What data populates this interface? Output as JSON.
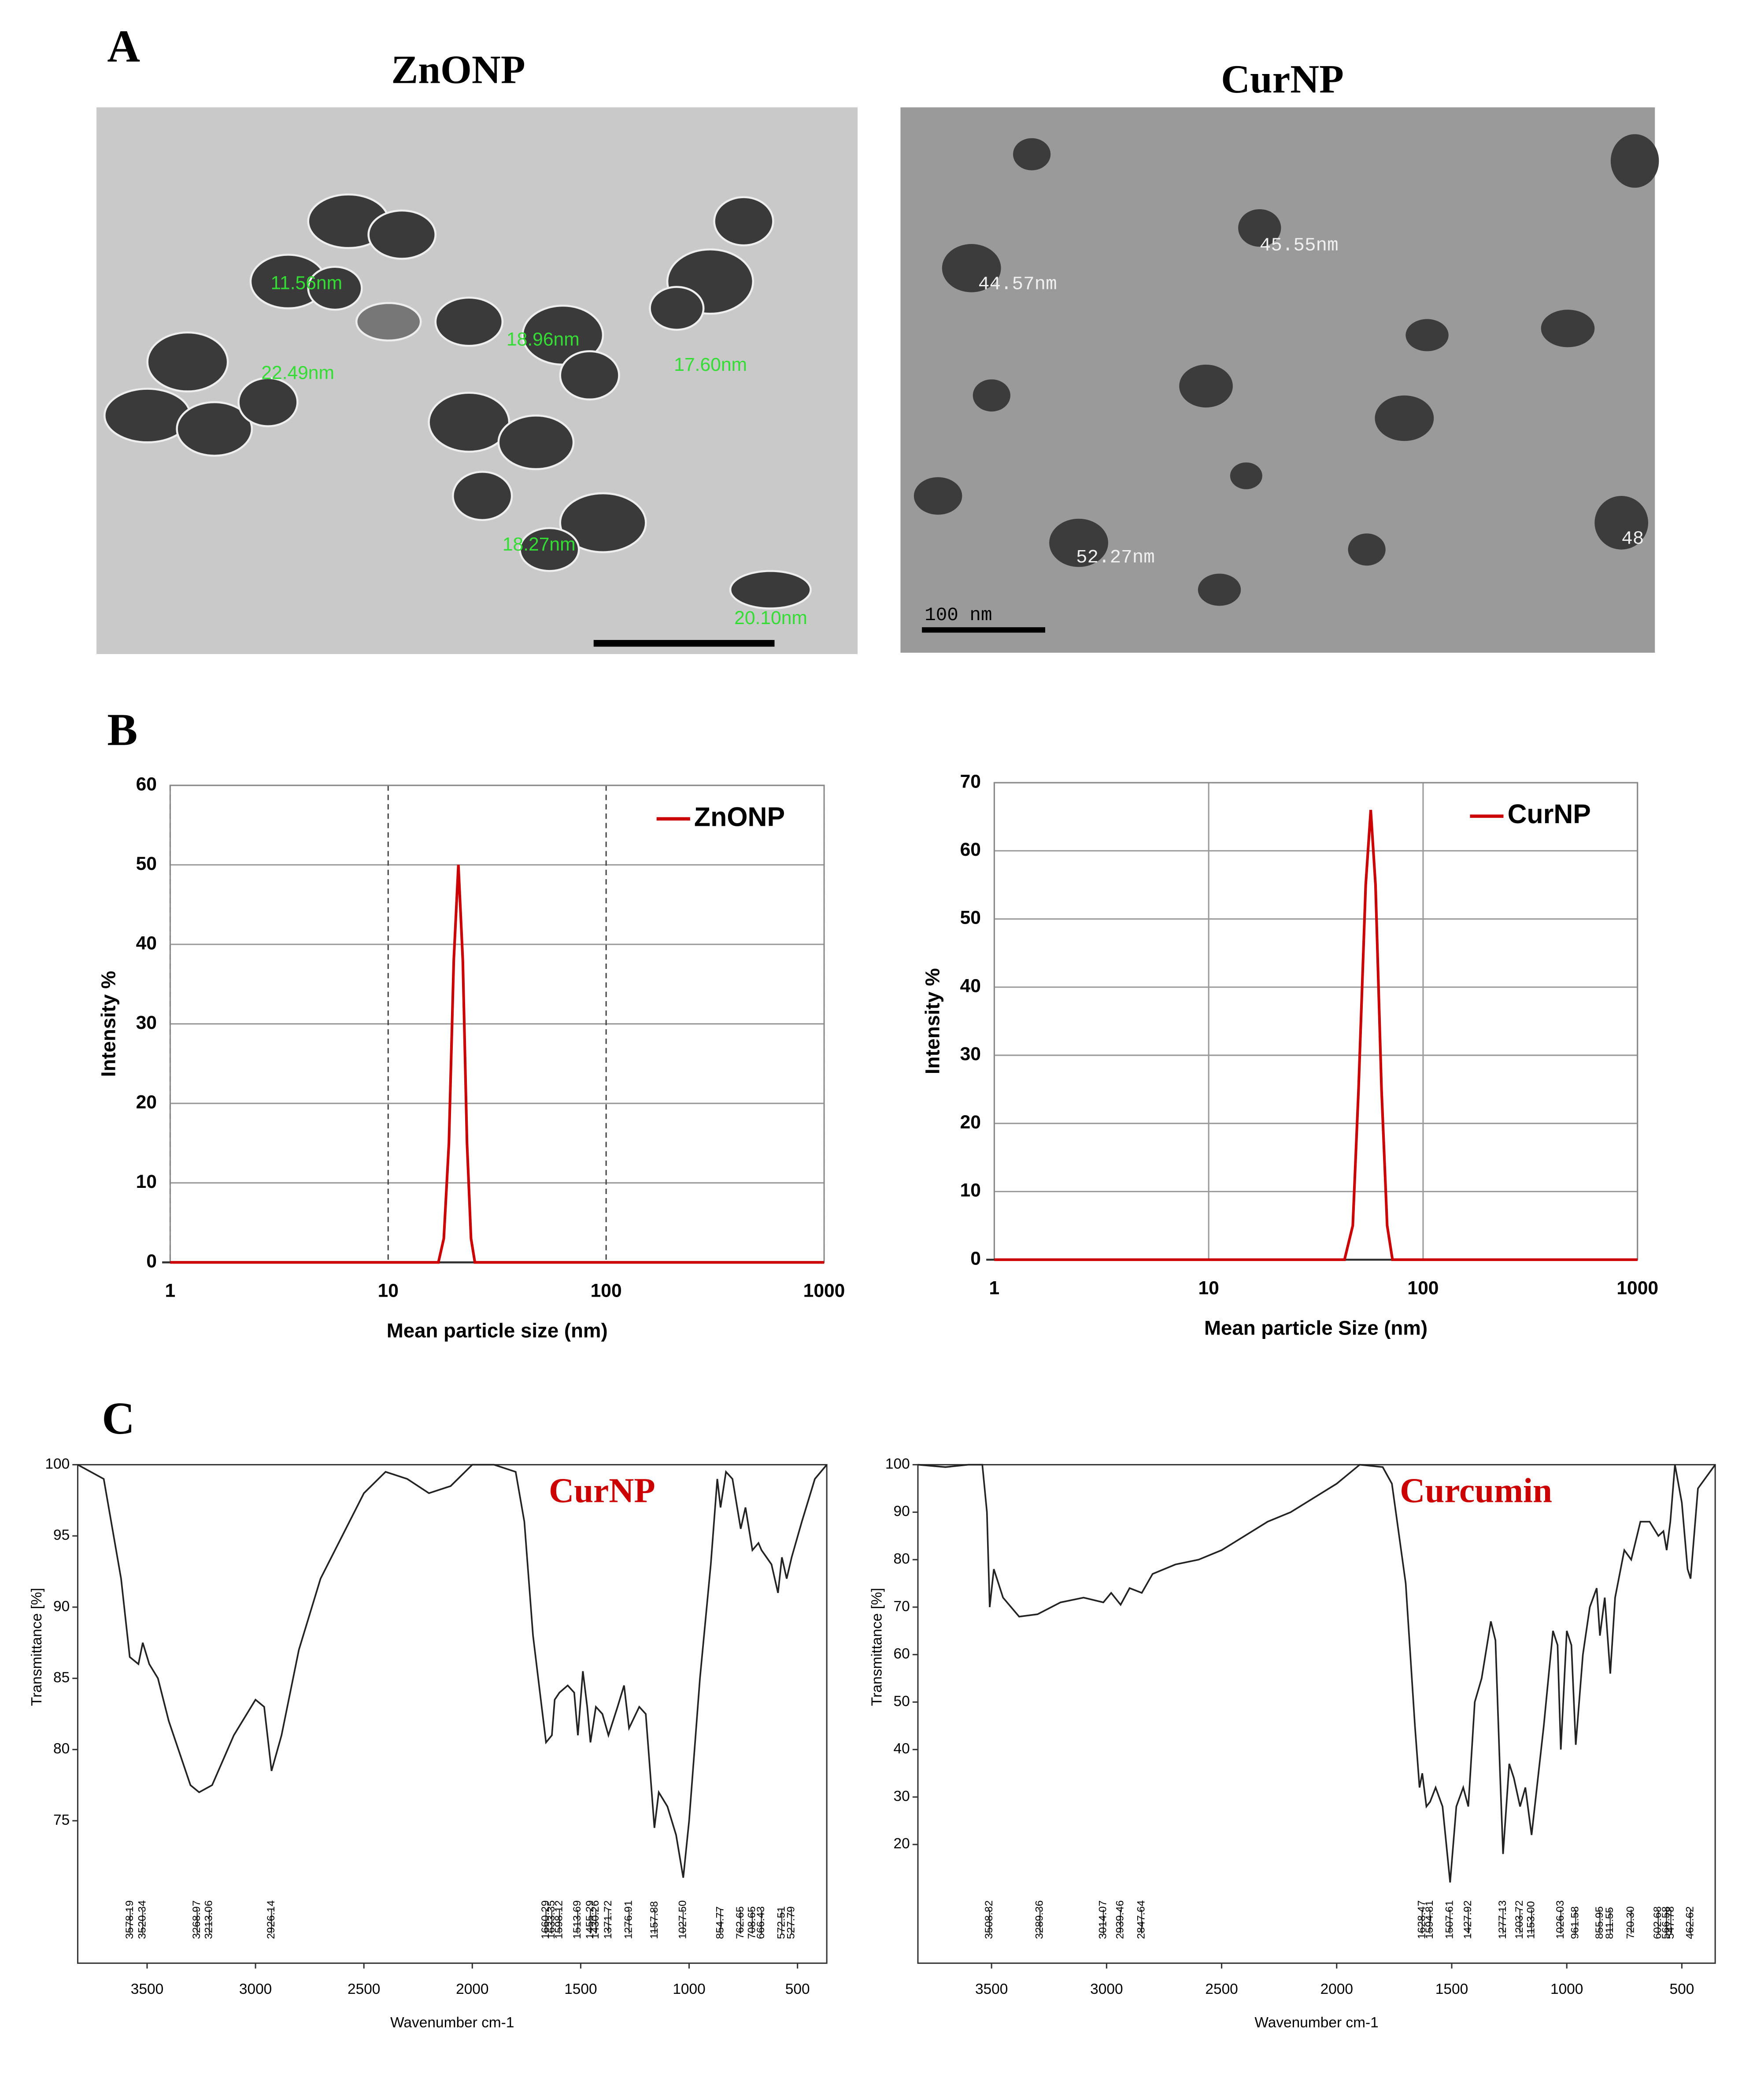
{
  "panel_labels": [
    "A",
    "B",
    "C"
  ],
  "images": [
    {
      "title": "ZnONP",
      "annotations": [
        "11.56nm",
        "18.96nm",
        "22.49nm",
        "17.60nm",
        "18.27nm",
        "20.10nm"
      ]
    },
    {
      "title": "CurNP",
      "annotations": [
        "45.55nm",
        "44.57nm",
        "52.27nm",
        "48"
      ],
      "scale_bar": "100 nm"
    }
  ],
  "chart_data": [
    {
      "type": "line",
      "xscale": "log",
      "grid": true,
      "xgrid_style": "dashed",
      "legend": "top-right",
      "x_label": "Mean particle size (nm)",
      "y_label": "Intensity %",
      "xlim": [
        1,
        1000
      ],
      "xticks": [
        1,
        10,
        100,
        1000
      ],
      "ylim": [
        0,
        60
      ],
      "yticks": [
        0,
        10,
        20,
        30,
        40,
        50,
        60
      ],
      "x": [
        1,
        17,
        18,
        19,
        20,
        21,
        22,
        23,
        24,
        25,
        1000
      ],
      "series": [
        {
          "name": "ZnONP",
          "color": "#cc0000",
          "values": [
            0,
            0,
            3,
            15,
            38,
            50,
            38,
            15,
            3,
            0,
            0
          ]
        }
      ]
    },
    {
      "type": "line",
      "xscale": "log",
      "grid": true,
      "xgrid_style": "solid",
      "legend": "top-right",
      "x_label": "Mean particle Size (nm)",
      "y_label": "Intensity %",
      "xlim": [
        1,
        1000
      ],
      "xticks": [
        1,
        10,
        100,
        1000
      ],
      "ylim": [
        0,
        70
      ],
      "yticks": [
        0,
        10,
        20,
        30,
        40,
        50,
        60,
        70
      ],
      "x": [
        1,
        43,
        47,
        50,
        54,
        57,
        60,
        64,
        68,
        72,
        1000
      ],
      "series": [
        {
          "name": "CurNP",
          "color": "#cc0000",
          "values": [
            0,
            0,
            5,
            25,
            55,
            66,
            55,
            25,
            5,
            0,
            0
          ]
        }
      ]
    },
    {
      "type": "line",
      "xscale": "linear",
      "grid": false,
      "title": "CurNP",
      "title_color": "#cc0000",
      "x_label": "Wavenumber cm-1",
      "y_label": "Transmittance [%]",
      "xlim": [
        3820,
        365
      ],
      "xticks": [
        3500,
        3000,
        2500,
        2000,
        1500,
        1000,
        500
      ],
      "ylim": [
        65,
        100
      ],
      "yticks": [
        75,
        80,
        85,
        90,
        95,
        100
      ],
      "x": [
        3820,
        3700,
        3620,
        3580,
        3540,
        3520,
        3490,
        3450,
        3400,
        3300,
        3260,
        3200,
        3100,
        3000,
        2960,
        2926,
        2880,
        2800,
        2700,
        2600,
        2500,
        2400,
        2300,
        2200,
        2100,
        2000,
        1900,
        1800,
        1760,
        1720,
        1680,
        1660,
        1633,
        1620,
        1598,
        1560,
        1530,
        1513,
        1490,
        1470,
        1455,
        1440,
        1430,
        1400,
        1372,
        1330,
        1300,
        1277,
        1230,
        1200,
        1160,
        1140,
        1100,
        1060,
        1027,
        1000,
        950,
        900,
        870,
        855,
        830,
        800,
        762,
        740,
        708,
        680,
        666,
        620,
        590,
        572,
        550,
        527,
        480,
        420,
        365
      ],
      "series": [
        {
          "color": "#222222",
          "values": [
            100,
            99,
            92,
            86.5,
            86,
            87.5,
            86,
            85,
            82,
            77.5,
            77,
            77.5,
            81,
            83.5,
            83,
            78.5,
            81,
            87,
            92,
            95,
            98,
            99.5,
            99,
            98,
            98.5,
            100,
            100,
            99.5,
            96,
            88,
            83,
            80.5,
            81,
            83.5,
            84,
            84.5,
            84,
            81,
            85.5,
            83,
            80.5,
            82,
            83,
            82.5,
            81,
            83,
            84.5,
            81.5,
            83,
            82.5,
            74.5,
            77,
            76,
            74,
            71,
            75,
            85,
            93,
            99,
            97,
            99.5,
            99,
            95.5,
            97,
            94,
            94.5,
            94,
            93,
            91,
            93.5,
            92,
            93.5,
            96,
            99,
            100
          ]
        }
      ],
      "peaks": [
        3578.19,
        3520.34,
        3268.97,
        3213.06,
        2926.14,
        1660.29,
        1633.35,
        1598.12,
        1513.69,
        1455.29,
        1430.26,
        1371.72,
        1276.91,
        1157.88,
        {
          "value": 1027.5,
          "label": "1027.50"
        },
        854.77,
        762.65,
        708.65,
        666.43,
        572.51,
        527.79
      ]
    },
    {
      "type": "line",
      "xscale": "linear",
      "grid": false,
      "title": "Curcumin",
      "title_color": "#cc0000",
      "x_label": "Wavenumber cm-1",
      "y_label": "Transmittance [%]",
      "xlim": [
        3820,
        355
      ],
      "xticks": [
        3500,
        3000,
        2500,
        2000,
        1500,
        1000,
        500
      ],
      "ylim": [
        -5,
        100
      ],
      "yticks": [
        20,
        30,
        40,
        50,
        60,
        70,
        80,
        90,
        100
      ],
      "x": [
        3820,
        3700,
        3600,
        3540,
        3520,
        3508,
        3490,
        3450,
        3380,
        3300,
        3200,
        3100,
        3014,
        2980,
        2939,
        2900,
        2847,
        2800,
        2700,
        2600,
        2500,
        2400,
        2300,
        2200,
        2100,
        2000,
        1900,
        1800,
        1760,
        1700,
        1660,
        1640,
        1628,
        1610,
        1594,
        1570,
        1540,
        1507,
        1480,
        1450,
        1428,
        1400,
        1370,
        1330,
        1310,
        1290,
        1277,
        1250,
        1230,
        1203,
        1180,
        1153,
        1100,
        1060,
        1040,
        1026,
        1000,
        980,
        961,
        930,
        900,
        870,
        856,
        835,
        811,
        790,
        750,
        720,
        680,
        640,
        602,
        580,
        566,
        550,
        530,
        500,
        475,
        462,
        430,
        355
      ],
      "series": [
        {
          "color": "#222222",
          "values": [
            100,
            99.5,
            100,
            100,
            90,
            70,
            78,
            72,
            68,
            68.5,
            71,
            72,
            71,
            73,
            70.5,
            74,
            73,
            77,
            79,
            80,
            82,
            85,
            88,
            90,
            93,
            96,
            100,
            99.5,
            96,
            75,
            45,
            32,
            35,
            28,
            29,
            32,
            28,
            12,
            28,
            32,
            28,
            50,
            55,
            67,
            63,
            35,
            18,
            37,
            34,
            28,
            32,
            22,
            45,
            65,
            62,
            40,
            65,
            62,
            41,
            60,
            70,
            74,
            64,
            72,
            56,
            72,
            82,
            80,
            88,
            88,
            85,
            86,
            82,
            88,
            100,
            92,
            78,
            76,
            95,
            100
          ]
        }
      ],
      "peaks": [
        3508.82,
        3289.36,
        3014.07,
        2939.46,
        2847.64,
        1628.47,
        1594.81,
        1507.61,
        1427.92,
        1277.13,
        1203.72,
        {
          "value": 1153,
          "label": "1153.00"
        },
        1026.03,
        961.58,
        855.95,
        811.55,
        {
          "value": 720.3,
          "label": "720.30"
        },
        602.68,
        566.58,
        547.78,
        462.62
      ]
    }
  ]
}
